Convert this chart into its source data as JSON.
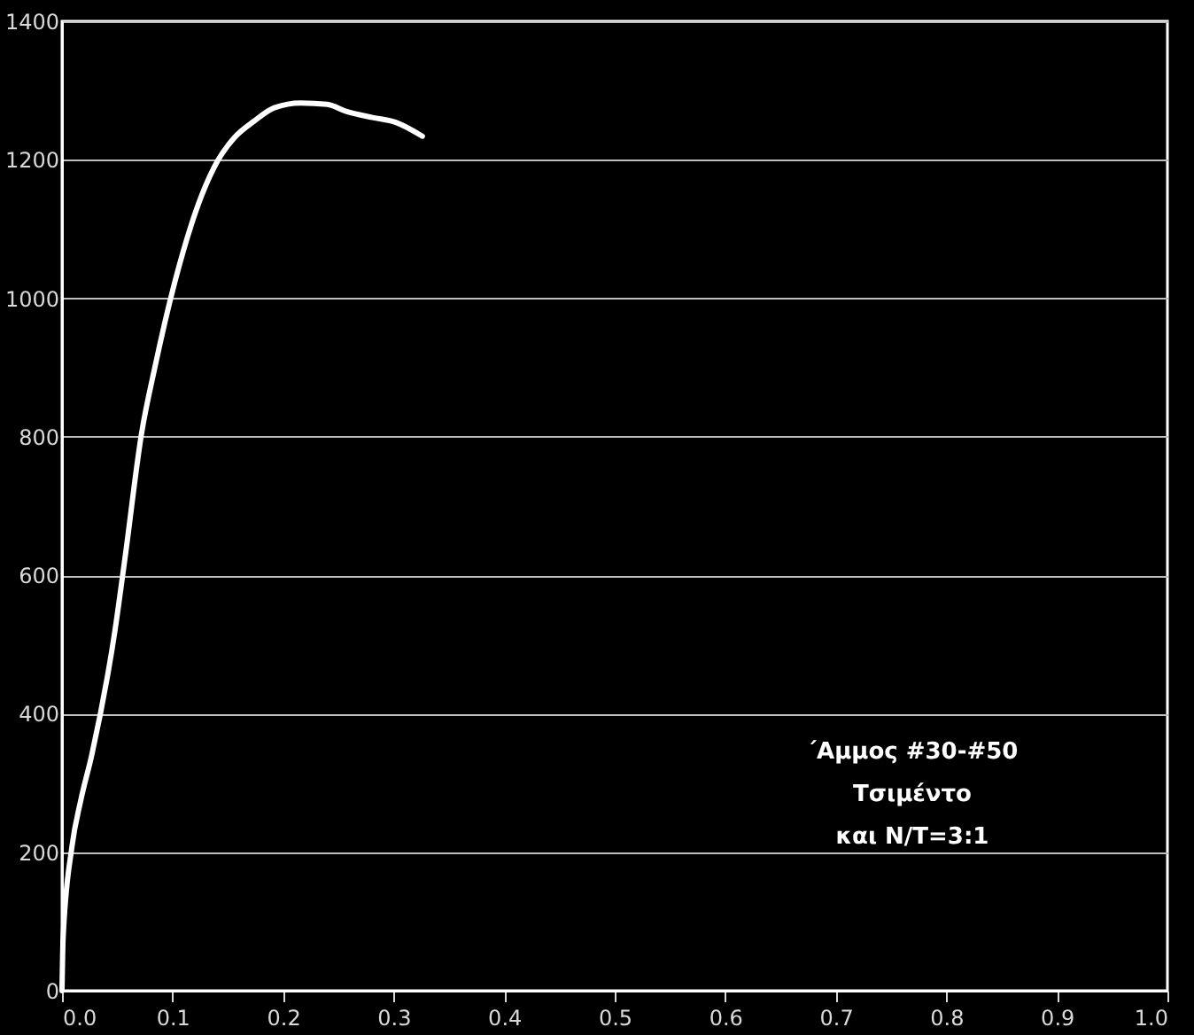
{
  "chart_data": {
    "type": "line",
    "x": [
      0,
      0.001,
      0.009,
      0.017,
      0.027,
      0.048,
      0.057,
      0.072,
      0.084,
      0.102,
      0.126,
      0.141,
      0.156,
      0.174,
      0.192,
      0.216,
      0.24,
      0.257,
      0.281,
      0.302,
      0.326
    ],
    "series": [
      {
        "color": "#ffffff",
        "values": [
          0,
          76,
          208,
          275,
          341,
          521,
          625,
          805,
          900,
          1023,
          1147,
          1199,
          1232,
          1256,
          1275,
          1282,
          1280,
          1270,
          1261,
          1254,
          1234
        ]
      }
    ],
    "xlim": [
      0,
      1
    ],
    "xticks": [
      {
        "value": 0,
        "label": "0.0"
      },
      0.1,
      0.2,
      0.3,
      0.4,
      0.5,
      0.6,
      0.7,
      0.8,
      0.9,
      {
        "value": 1,
        "label": "1.0"
      }
    ],
    "ylim": [
      0,
      1400
    ],
    "yticks": [
      0,
      200,
      400,
      600,
      800,
      1000,
      1200,
      1400
    ],
    "grid": "y",
    "legend": false,
    "marker": "none",
    "line_style": "solid",
    "annotations": [
      "΄Αμμος #30-#50",
      "Τσιμέντο",
      "και  N/T=3:1"
    ]
  }
}
